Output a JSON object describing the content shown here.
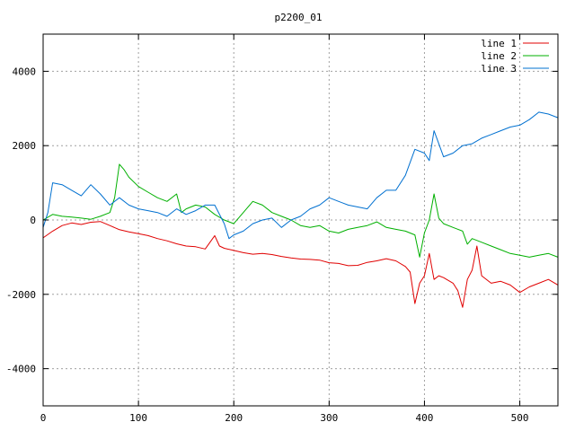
{
  "chart_data": {
    "type": "line",
    "title": "p2200_01",
    "xlabel": "",
    "ylabel": "",
    "xlim": [
      0,
      540
    ],
    "ylim": [
      -5000,
      5000
    ],
    "xticks": [
      0,
      100,
      200,
      300,
      400,
      500
    ],
    "yticks": [
      -4000,
      -2000,
      0,
      2000,
      4000
    ],
    "grid": true,
    "legend_position": "top-right",
    "series": [
      {
        "name": "line 1",
        "color": "#e00000",
        "points": [
          [
            0,
            -480
          ],
          [
            10,
            -300
          ],
          [
            20,
            -150
          ],
          [
            30,
            -80
          ],
          [
            40,
            -120
          ],
          [
            50,
            -60
          ],
          [
            60,
            -40
          ],
          [
            70,
            -150
          ],
          [
            80,
            -260
          ],
          [
            90,
            -320
          ],
          [
            100,
            -370
          ],
          [
            110,
            -420
          ],
          [
            120,
            -500
          ],
          [
            130,
            -560
          ],
          [
            140,
            -640
          ],
          [
            150,
            -700
          ],
          [
            160,
            -720
          ],
          [
            170,
            -780
          ],
          [
            180,
            -420
          ],
          [
            185,
            -700
          ],
          [
            190,
            -760
          ],
          [
            200,
            -820
          ],
          [
            210,
            -880
          ],
          [
            220,
            -920
          ],
          [
            230,
            -900
          ],
          [
            240,
            -930
          ],
          [
            250,
            -980
          ],
          [
            260,
            -1020
          ],
          [
            270,
            -1050
          ],
          [
            280,
            -1060
          ],
          [
            290,
            -1080
          ],
          [
            300,
            -1150
          ],
          [
            310,
            -1170
          ],
          [
            320,
            -1230
          ],
          [
            330,
            -1220
          ],
          [
            340,
            -1140
          ],
          [
            350,
            -1100
          ],
          [
            360,
            -1040
          ],
          [
            370,
            -1100
          ],
          [
            380,
            -1250
          ],
          [
            385,
            -1400
          ],
          [
            390,
            -2250
          ],
          [
            395,
            -1700
          ],
          [
            400,
            -1500
          ],
          [
            405,
            -900
          ],
          [
            410,
            -1600
          ],
          [
            415,
            -1500
          ],
          [
            420,
            -1550
          ],
          [
            430,
            -1700
          ],
          [
            435,
            -1900
          ],
          [
            440,
            -2350
          ],
          [
            445,
            -1600
          ],
          [
            450,
            -1350
          ],
          [
            455,
            -700
          ],
          [
            460,
            -1500
          ],
          [
            470,
            -1700
          ],
          [
            480,
            -1650
          ],
          [
            490,
            -1750
          ],
          [
            500,
            -1950
          ],
          [
            510,
            -1800
          ],
          [
            520,
            -1700
          ],
          [
            530,
            -1600
          ],
          [
            540,
            -1750
          ]
        ]
      },
      {
        "name": "line 2",
        "color": "#00b000",
        "points": [
          [
            0,
            0
          ],
          [
            10,
            150
          ],
          [
            20,
            100
          ],
          [
            30,
            80
          ],
          [
            40,
            50
          ],
          [
            50,
            20
          ],
          [
            60,
            100
          ],
          [
            70,
            200
          ],
          [
            75,
            600
          ],
          [
            80,
            1500
          ],
          [
            85,
            1350
          ],
          [
            90,
            1150
          ],
          [
            100,
            900
          ],
          [
            110,
            750
          ],
          [
            120,
            600
          ],
          [
            130,
            500
          ],
          [
            140,
            700
          ],
          [
            145,
            200
          ],
          [
            150,
            300
          ],
          [
            160,
            400
          ],
          [
            170,
            350
          ],
          [
            180,
            150
          ],
          [
            190,
            0
          ],
          [
            200,
            -100
          ],
          [
            210,
            200
          ],
          [
            220,
            500
          ],
          [
            230,
            400
          ],
          [
            240,
            200
          ],
          [
            250,
            100
          ],
          [
            260,
            0
          ],
          [
            270,
            -150
          ],
          [
            280,
            -200
          ],
          [
            290,
            -150
          ],
          [
            300,
            -300
          ],
          [
            310,
            -350
          ],
          [
            320,
            -250
          ],
          [
            330,
            -200
          ],
          [
            340,
            -150
          ],
          [
            350,
            -50
          ],
          [
            360,
            -200
          ],
          [
            370,
            -250
          ],
          [
            380,
            -300
          ],
          [
            390,
            -400
          ],
          [
            395,
            -1000
          ],
          [
            400,
            -350
          ],
          [
            405,
            0
          ],
          [
            410,
            700
          ],
          [
            415,
            50
          ],
          [
            420,
            -100
          ],
          [
            430,
            -200
          ],
          [
            440,
            -300
          ],
          [
            445,
            -650
          ],
          [
            450,
            -500
          ],
          [
            460,
            -600
          ],
          [
            470,
            -700
          ],
          [
            480,
            -800
          ],
          [
            490,
            -900
          ],
          [
            500,
            -950
          ],
          [
            510,
            -1000
          ],
          [
            520,
            -950
          ],
          [
            530,
            -900
          ],
          [
            540,
            -1000
          ]
        ]
      },
      {
        "name": "line 3",
        "color": "#0070d0",
        "points": [
          [
            0,
            -200
          ],
          [
            5,
            200
          ],
          [
            10,
            1000
          ],
          [
            20,
            950
          ],
          [
            30,
            800
          ],
          [
            40,
            650
          ],
          [
            50,
            950
          ],
          [
            60,
            700
          ],
          [
            70,
            400
          ],
          [
            80,
            600
          ],
          [
            90,
            400
          ],
          [
            100,
            300
          ],
          [
            110,
            250
          ],
          [
            120,
            200
          ],
          [
            130,
            100
          ],
          [
            140,
            300
          ],
          [
            150,
            150
          ],
          [
            160,
            250
          ],
          [
            170,
            400
          ],
          [
            180,
            400
          ],
          [
            190,
            -100
          ],
          [
            195,
            -500
          ],
          [
            200,
            -400
          ],
          [
            210,
            -300
          ],
          [
            220,
            -100
          ],
          [
            230,
            0
          ],
          [
            240,
            50
          ],
          [
            250,
            -200
          ],
          [
            260,
            0
          ],
          [
            270,
            100
          ],
          [
            280,
            300
          ],
          [
            290,
            400
          ],
          [
            300,
            600
          ],
          [
            310,
            500
          ],
          [
            320,
            400
          ],
          [
            330,
            350
          ],
          [
            340,
            300
          ],
          [
            350,
            600
          ],
          [
            360,
            800
          ],
          [
            370,
            800
          ],
          [
            380,
            1200
          ],
          [
            390,
            1900
          ],
          [
            400,
            1800
          ],
          [
            405,
            1600
          ],
          [
            410,
            2400
          ],
          [
            420,
            1700
          ],
          [
            430,
            1800
          ],
          [
            440,
            2000
          ],
          [
            450,
            2050
          ],
          [
            460,
            2200
          ],
          [
            470,
            2300
          ],
          [
            480,
            2400
          ],
          [
            490,
            2500
          ],
          [
            500,
            2550
          ],
          [
            510,
            2700
          ],
          [
            520,
            2900
          ],
          [
            530,
            2850
          ],
          [
            540,
            2750
          ]
        ]
      }
    ]
  }
}
